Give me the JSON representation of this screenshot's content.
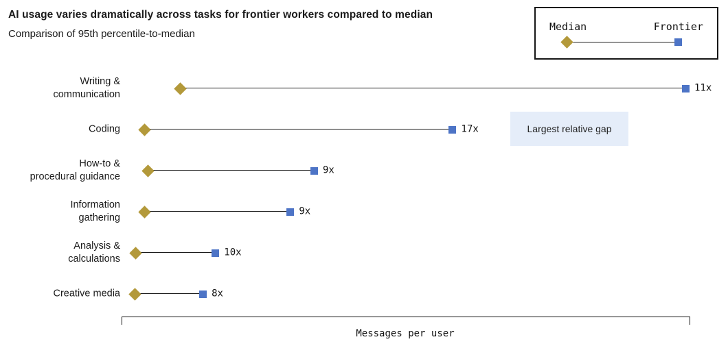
{
  "header": {
    "title": "AI usage varies dramatically across tasks for frontier workers compared to median",
    "subtitle": "Comparison of 95th percentile-to-median"
  },
  "legend": {
    "median_label": "Median",
    "frontier_label": "Frontier",
    "median_color": "#b3993a",
    "frontier_color": "#4d74c6"
  },
  "annotation": {
    "text": "Largest relative gap",
    "background": "#e5edf9"
  },
  "chart_data": {
    "type": "dumbbell",
    "title": "AI usage varies dramatically across tasks for frontier workers compared to median",
    "subtitle": "Comparison of 95th percentile-to-median",
    "categories": [
      "Writing & communication",
      "Coding",
      "How-to & procedural guidance",
      "Information gathering",
      "Analysis & calculations",
      "Creative media"
    ],
    "category_display_lines": [
      "Writing &\ncommunication",
      "Coding",
      "How-to &\nprocedural guidance",
      "Information\ngathering",
      "Analysis &\ncalculations",
      "Creative media"
    ],
    "series": [
      {
        "name": "Median",
        "marker": "diamond",
        "color": "#b3993a",
        "positions_norm": [
          0.103,
          0.041,
          0.047,
          0.04,
          0.025,
          0.024
        ]
      },
      {
        "name": "Frontier",
        "marker": "square",
        "color": "#4d74c6",
        "positions_norm": [
          0.994,
          0.583,
          0.339,
          0.297,
          0.165,
          0.143
        ]
      }
    ],
    "ratio_labels": [
      "11x",
      "17x",
      "9x",
      "9x",
      "10x",
      "8x"
    ],
    "xlabel": "Messages per user",
    "x_axis_ticks": [],
    "grid": false,
    "legend_position": "top-right"
  }
}
